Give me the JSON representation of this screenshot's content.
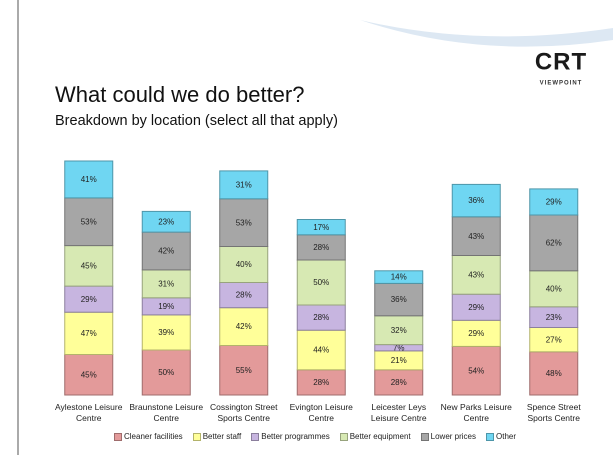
{
  "chart_data": {
    "type": "stacked-bar",
    "title": "What could we do better?",
    "subtitle": "Breakdown by location (select all that apply)",
    "logo": {
      "main": "CRT",
      "sub": "VIEWPOINT"
    },
    "categories": [
      "Aylestone Leisure Centre",
      "Braunstone Leisure Centre",
      "Cossington Street Sports Centre",
      "Evington Leisure Centre",
      "Leicester Leys Leisure Centre",
      "New Parks Leisure Centre",
      "Spence Street Sports Centre"
    ],
    "series": [
      {
        "name": "Cleaner facilities",
        "color": "#e39a9a",
        "values": [
          45,
          50,
          55,
          28,
          28,
          54,
          48
        ],
        "value_labels": [
          "45%",
          "50%",
          "55%",
          "28%",
          "28%",
          "54%",
          "48%"
        ]
      },
      {
        "name": "Better staff",
        "color": "#ffff99",
        "values": [
          47,
          39,
          42,
          44,
          21,
          29,
          27
        ],
        "value_labels": [
          "47%",
          "39%",
          "42%",
          "44%",
          "21%",
          "29%",
          "27%"
        ]
      },
      {
        "name": "Better programmes",
        "color": "#c7b5e0",
        "values": [
          29,
          19,
          28,
          28,
          7,
          29,
          23
        ],
        "value_labels": [
          "29%",
          "19%",
          "28%",
          "28%",
          "7%",
          "29%",
          "23%"
        ]
      },
      {
        "name": "Better equipment",
        "color": "#d7e9b3",
        "values": [
          45,
          31,
          40,
          50,
          32,
          43,
          40
        ],
        "value_labels": [
          "45%",
          "31%",
          "40%",
          "50%",
          "32%",
          "43%",
          "40%"
        ]
      },
      {
        "name": "Lower prices",
        "color": "#a6a6a6",
        "values": [
          53,
          42,
          53,
          28,
          36,
          43,
          62
        ],
        "value_labels": [
          "53%",
          "42%",
          "53%",
          "28%",
          "36%",
          "43%",
          "62%"
        ]
      },
      {
        "name": "Other",
        "color": "#6fd6f2",
        "values": [
          41,
          23,
          31,
          17,
          14,
          36,
          29
        ],
        "value_labels": [
          "41%",
          "23%",
          "31%",
          "17%",
          "14%",
          "36%",
          "29%"
        ]
      }
    ]
  }
}
